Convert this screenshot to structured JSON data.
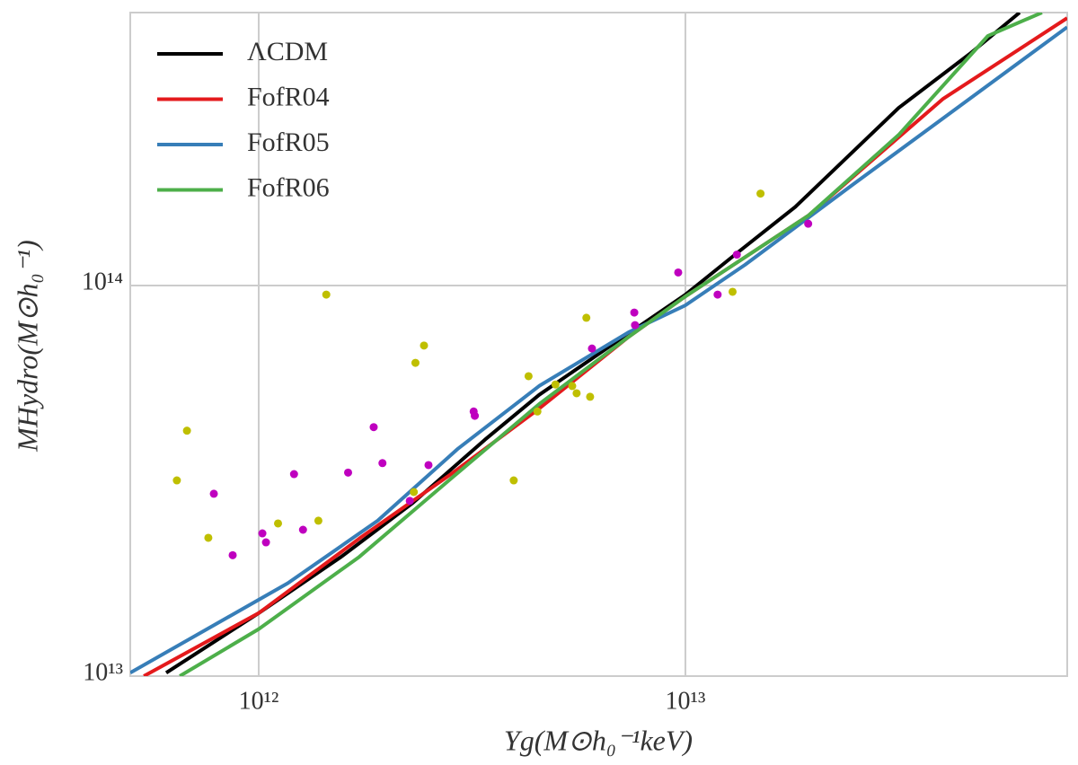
{
  "chart_data": {
    "type": "line",
    "xlabel": "Yg(M⊙h₀⁻¹keV)",
    "ylabel": "MHydro(M⊙h₀⁻¹)",
    "xscale": "log",
    "yscale": "log",
    "grid": true,
    "legend": "upper left",
    "xlim": [
      500000000000.0,
      78500000000000.0
    ],
    "ylim": [
      10000000000000.0,
      500000000000000.0
    ],
    "xticks": [
      {
        "value": 1000000000000.0,
        "label": "10¹²"
      },
      {
        "value": 10000000000000.0,
        "label": "10¹³"
      }
    ],
    "yticks": [
      {
        "value": 10000000000000.0,
        "label": "10¹³"
      },
      {
        "value": 100000000000000.0,
        "label": "10¹⁴"
      }
    ],
    "series": [
      {
        "name": "ΛCDM",
        "color": "#000000",
        "x": [
          607000000000.0,
          1000000000000.0,
          1560000000000.0,
          2300000000000.0,
          3390000000000.0,
          4540000000000.0,
          6690000000000.0,
          10000000000000.0,
          13200000000000.0,
          18100000000000.0,
          31600000000000.0,
          46400000000000.0,
          60700000000000.0
        ],
        "values": [
          10200000000000.0,
          14500000000000.0,
          20200000000000.0,
          27800000000000.0,
          40300000000000.0,
          52500000000000.0,
          70200000000000.0,
          94800000000000.0,
          121000000000000.0,
          159000000000000.0,
          285000000000000.0,
          392000000000000.0,
          500000000000000.0
        ]
      },
      {
        "name": "FofR04",
        "color": "#e41a1c",
        "x": [
          538000000000.0,
          1000000000000.0,
          1720000000000.0,
          2790000000000.0,
          4540000000000.0,
          7360000000000.0,
          10000000000000.0,
          19400000000000.0,
          40200000000000.0,
          78500000000000.0
        ],
        "values": [
          10000000000000.0,
          14500000000000.0,
          22500000000000.0,
          32600000000000.0,
          48400000000000.0,
          73900000000000.0,
          93800000000000.0,
          151000000000000.0,
          301000000000000.0,
          484000000000000.0
        ]
      },
      {
        "name": "FofR05",
        "color": "#377eb8",
        "x": [
          500000000000.0,
          1170000000000.0,
          1900000000000.0,
          2930000000000.0,
          4540000000000.0,
          7360000000000.0,
          10000000000000.0,
          13800000000000.0,
          24800000000000.0,
          78500000000000.0
        ],
        "values": [
          10200000000000.0,
          17300000000000.0,
          25000000000000.0,
          38200000000000.0,
          55300000000000.0,
          75900000000000.0,
          89000000000000.0,
          113000000000000.0,
          182000000000000.0,
          459000000000000.0
        ]
      },
      {
        "name": "FofR06",
        "color": "#4daf4a",
        "x": [
          653000000000.0,
          1000000000000.0,
          1720000000000.0,
          2790000000000.0,
          4540000000000.0,
          7360000000000.0,
          10000000000000.0,
          19400000000000.0,
          31600000000000.0,
          51200000000000.0,
          68500000000000.0
        ],
        "values": [
          10000000000000.0,
          13200000000000.0,
          20200000000000.0,
          31700000000000.0,
          49700000000000.0,
          73900000000000.0,
          93800000000000.0,
          151000000000000.0,
          243000000000000.0,
          436000000000000.0,
          500000000000000.0
        ]
      }
    ],
    "points": [
      {
        "color": "#bfbf00",
        "x": [
          643000000000.0,
          679000000000.0,
          762000000000.0,
          1110000000000.0,
          1380000000000.0,
          1440000000000.0,
          2310000000000.0,
          2330000000000.0,
          2440000000000.0,
          3960000000000.0,
          4290000000000.0,
          4500000000000.0,
          4960000000000.0,
          5430000000000.0,
          5560000000000.0,
          5860000000000.0,
          5980000000000.0,
          12900000000000.0,
          15000000000000.0
        ],
        "values": [
          31700000000000.0,
          42500000000000.0,
          22600000000000.0,
          24600000000000.0,
          25000000000000.0,
          94800000000000.0,
          29600000000000.0,
          63400000000000.0,
          70200000000000.0,
          31700000000000.0,
          58600000000000.0,
          47600000000000.0,
          55800000000000.0,
          55300000000000.0,
          53000000000000.0,
          82700000000000.0,
          51900000000000.0,
          96400000000000.0,
          172000000000000.0
        ]
      },
      {
        "color": "#bf00bf",
        "x": [
          785000000000.0,
          869000000000.0,
          1020000000000.0,
          1040000000000.0,
          1210000000000.0,
          1270000000000.0,
          1620000000000.0,
          1860000000000.0,
          1950000000000.0,
          2260000000000.0,
          2500000000000.0,
          3190000000000.0,
          3210000000000.0,
          6040000000000.0,
          7590000000000.0,
          7620000000000.0,
          9620000000000.0,
          11900000000000.0,
          13200000000000.0,
          19400000000000.0
        ],
        "values": [
          29300000000000.0,
          20400000000000.0,
          23200000000000.0,
          22000000000000.0,
          32900000000000.0,
          23700000000000.0,
          33200000000000.0,
          43400000000000.0,
          35100000000000.0,
          28100000000000.0,
          34700000000000.0,
          47600000000000.0,
          46400000000000.0,
          69000000000000.0,
          85300000000000.0,
          79200000000000.0,
          108000000000000.0,
          94800000000000.0,
          120000000000000.0,
          144000000000000.0
        ]
      }
    ]
  }
}
